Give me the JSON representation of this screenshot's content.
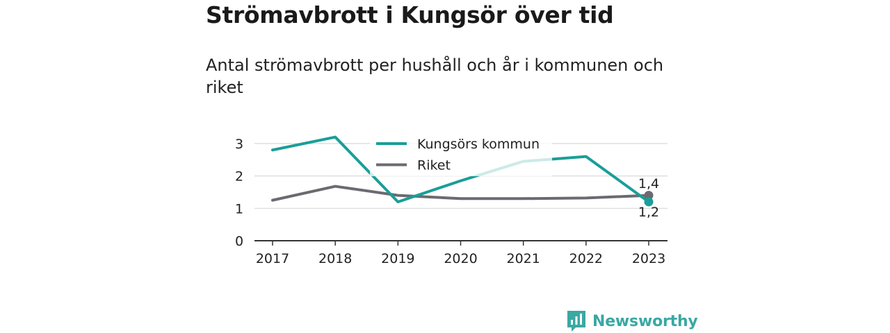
{
  "title": "Strömavbrott i Kungsör över tid",
  "subtitle": "Antal strömavbrott per hushåll och år i kommunen och riket",
  "brand": "Newsworthy",
  "colors": {
    "kungsor": "#1a9e98",
    "riket": "#6b6a70",
    "grid": "#d9d9d9",
    "axis": "#333333",
    "brand": "#3aa8a3"
  },
  "chart_data": {
    "type": "line",
    "x": [
      "2017",
      "2018",
      "2019",
      "2020",
      "2021",
      "2022",
      "2023"
    ],
    "ylim": [
      0,
      3.3
    ],
    "yticks": [
      0,
      1,
      2,
      3
    ],
    "grid": true,
    "legend_position": "top-center",
    "series": [
      {
        "name": "Kungsörs kommun",
        "values": [
          2.8,
          3.2,
          1.2,
          1.85,
          2.45,
          2.6,
          1.2
        ]
      },
      {
        "name": "Riket",
        "values": [
          1.25,
          1.68,
          1.4,
          1.3,
          1.3,
          1.32,
          1.4
        ]
      }
    ],
    "end_labels": [
      "1,2",
      "1,4"
    ]
  }
}
